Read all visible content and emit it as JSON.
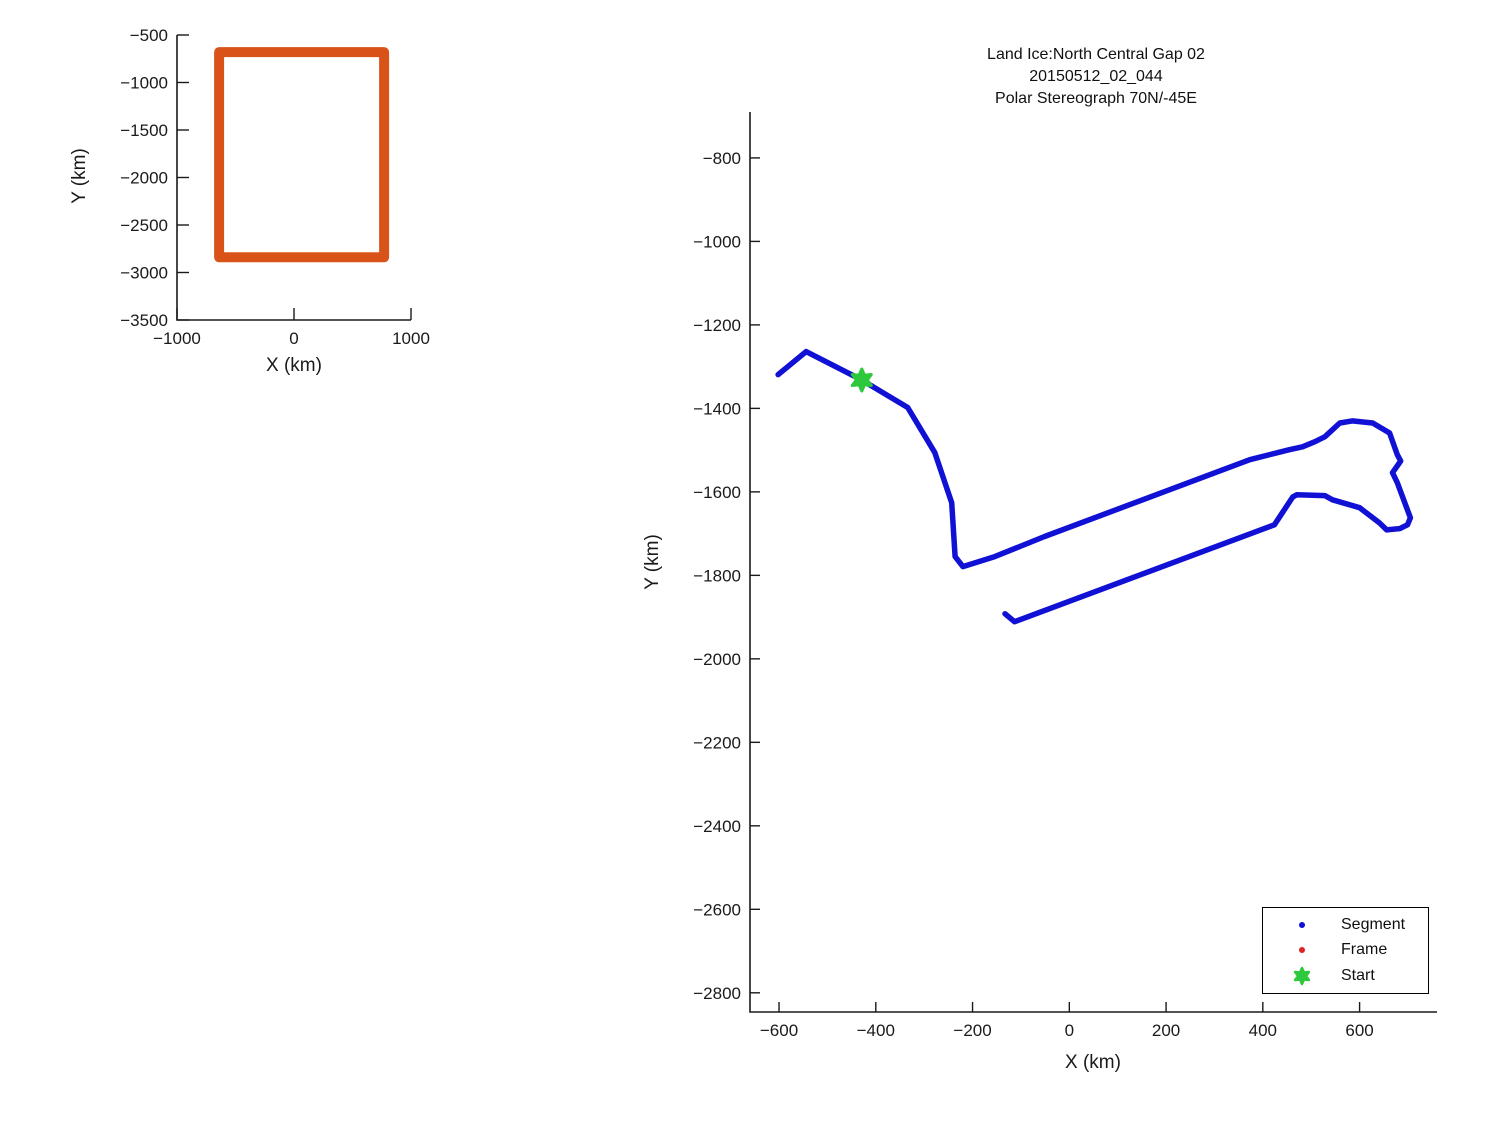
{
  "figure": {
    "background": "#ffffff",
    "axis_color": "#1a1a1a"
  },
  "chart_data": [
    {
      "id": "overview",
      "type": "line",
      "title": "",
      "xlabel": "X (km)",
      "ylabel": "Y (km)",
      "xlim": [
        -1000,
        1000
      ],
      "ylim": [
        -3500,
        -500
      ],
      "xticks": [
        -1000,
        0,
        1000
      ],
      "yticks": [
        -500,
        -1000,
        -1500,
        -2000,
        -2500,
        -3000,
        -3500
      ],
      "grid": false,
      "legend": null,
      "series": [
        {
          "name": "coverage-outline",
          "color": "#d95319",
          "line_width": 10,
          "closed": true,
          "points": [
            [
              -640,
              -680
            ],
            [
              770,
              -680
            ],
            [
              770,
              -2840
            ],
            [
              -640,
              -2840
            ]
          ]
        }
      ],
      "markers": []
    },
    {
      "id": "main",
      "type": "line",
      "title_lines": [
        "Land Ice:North Central Gap 02",
        "20150512_02_044",
        "Polar Stereograph 70N/-45E"
      ],
      "xlabel": "X (km)",
      "ylabel": "Y (km)",
      "xlim": [
        -660,
        760
      ],
      "ylim": [
        -2846,
        -690
      ],
      "xticks": [
        -600,
        -400,
        -200,
        0,
        200,
        400,
        600
      ],
      "yticks": [
        -800,
        -1000,
        -1200,
        -1400,
        -1600,
        -1800,
        -2000,
        -2200,
        -2400,
        -2600,
        -2800
      ],
      "grid": false,
      "legend": {
        "position": "bottom-right",
        "items": [
          {
            "label": "Segment",
            "marker": "dot",
            "color": "#1111d6"
          },
          {
            "label": "Frame",
            "marker": "dot",
            "color": "#e02222"
          },
          {
            "label": "Start",
            "marker": "hexagram",
            "color": "#2dc83c"
          }
        ]
      },
      "series": [
        {
          "name": "segment-track",
          "color": "#1111d6",
          "line_width": 5.5,
          "closed": false,
          "points": [
            [
              -602,
              -1319
            ],
            [
              -544,
              -1264
            ],
            [
              -429,
              -1332
            ],
            [
              -334,
              -1398
            ],
            [
              -278,
              -1506
            ],
            [
              -243,
              -1626
            ],
            [
              -236,
              -1755
            ],
            [
              -220,
              -1779
            ],
            [
              -154,
              -1755
            ],
            [
              -51,
              -1707
            ],
            [
              373,
              -1523
            ],
            [
              455,
              -1499
            ],
            [
              482,
              -1492
            ],
            [
              507,
              -1480
            ],
            [
              528,
              -1468
            ],
            [
              559,
              -1435
            ],
            [
              585,
              -1430
            ],
            [
              627,
              -1435
            ],
            [
              662,
              -1459
            ],
            [
              678,
              -1511
            ],
            [
              685,
              -1526
            ],
            [
              668,
              -1554
            ],
            [
              678,
              -1578
            ],
            [
              705,
              -1662
            ],
            [
              699,
              -1679
            ],
            [
              683,
              -1688
            ],
            [
              656,
              -1691
            ],
            [
              641,
              -1674
            ],
            [
              600,
              -1638
            ],
            [
              544,
              -1619
            ],
            [
              528,
              -1609
            ],
            [
              470,
              -1607
            ],
            [
              462,
              -1612
            ],
            [
              424,
              -1679
            ],
            [
              -113,
              -1911
            ],
            [
              -133,
              -1892
            ]
          ]
        }
      ],
      "markers": [
        {
          "name": "start",
          "shape": "hexagram",
          "color": "#2dc83c",
          "x": -429,
          "y": -1332,
          "size": 11
        }
      ]
    }
  ]
}
